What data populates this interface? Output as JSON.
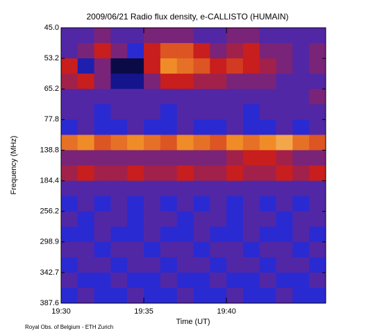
{
  "chart_data": {
    "type": "heatmap",
    "title": "2009/06/21  Radio flux density, e-CALLISTO (HUMAIN)",
    "x_label": "Time (UT)",
    "y_label": "Frequency (MHz)",
    "credit": "Royal Obs. of Belgium - ETH Zurich",
    "xlim": [
      "19:30",
      "19:46"
    ],
    "xticks": [
      "19:30",
      "19:35",
      "19:40"
    ],
    "yticks": [
      {
        "value": 45,
        "label": "45.0"
      },
      {
        "value": 53.2,
        "label": "53.2"
      },
      {
        "value": 65.2,
        "label": "65.2"
      },
      {
        "value": 77.8,
        "label": "77.8"
      },
      {
        "value": 138.8,
        "label": "138.8"
      },
      {
        "value": 184.4,
        "label": "184.4"
      },
      {
        "value": 256.2,
        "label": "256.2"
      },
      {
        "value": 298.9,
        "label": "298.9"
      },
      {
        "value": 342.7,
        "label": "342.7"
      },
      {
        "value": 387.6,
        "label": "387.6"
      }
    ],
    "colormap": [
      "#000000",
      "#14148c",
      "#2a2ad2",
      "#c81e1e",
      "#f08c28",
      "#fff5b4"
    ],
    "values": [
      [
        0.45,
        0.45,
        0.5,
        0.45,
        0.45,
        0.5,
        0.5,
        0.5,
        0.45,
        0.45,
        0.5,
        0.5,
        0.45,
        0.45,
        0.45,
        0.45
      ],
      [
        0.45,
        0.5,
        0.6,
        0.5,
        0.4,
        0.6,
        0.7,
        0.7,
        0.6,
        0.5,
        0.55,
        0.6,
        0.5,
        0.5,
        0.45,
        0.5
      ],
      [
        0.6,
        0.3,
        0.5,
        0.1,
        0.1,
        0.6,
        0.8,
        0.75,
        0.7,
        0.6,
        0.65,
        0.6,
        0.55,
        0.5,
        0.45,
        0.5
      ],
      [
        0.55,
        0.6,
        0.5,
        0.2,
        0.2,
        0.5,
        0.6,
        0.6,
        0.55,
        0.55,
        0.5,
        0.5,
        0.5,
        0.45,
        0.45,
        0.45
      ],
      [
        0.45,
        0.45,
        0.45,
        0.45,
        0.45,
        0.45,
        0.45,
        0.45,
        0.45,
        0.45,
        0.45,
        0.45,
        0.45,
        0.45,
        0.45,
        0.5
      ],
      [
        0.45,
        0.45,
        0.4,
        0.45,
        0.45,
        0.45,
        0.4,
        0.45,
        0.45,
        0.45,
        0.45,
        0.4,
        0.45,
        0.45,
        0.45,
        0.45
      ],
      [
        0.4,
        0.45,
        0.4,
        0.4,
        0.45,
        0.4,
        0.4,
        0.45,
        0.4,
        0.4,
        0.45,
        0.4,
        0.4,
        0.45,
        0.4,
        0.45
      ],
      [
        0.75,
        0.8,
        0.7,
        0.75,
        0.8,
        0.75,
        0.7,
        0.8,
        0.75,
        0.7,
        0.8,
        0.75,
        0.8,
        0.85,
        0.75,
        0.7
      ],
      [
        0.5,
        0.5,
        0.5,
        0.5,
        0.5,
        0.5,
        0.5,
        0.5,
        0.5,
        0.5,
        0.55,
        0.6,
        0.6,
        0.55,
        0.5,
        0.5
      ],
      [
        0.55,
        0.6,
        0.55,
        0.55,
        0.6,
        0.55,
        0.55,
        0.6,
        0.55,
        0.55,
        0.6,
        0.55,
        0.55,
        0.6,
        0.55,
        0.6
      ],
      [
        0.45,
        0.45,
        0.45,
        0.45,
        0.45,
        0.45,
        0.45,
        0.45,
        0.45,
        0.45,
        0.45,
        0.45,
        0.45,
        0.45,
        0.45,
        0.45
      ],
      [
        0.4,
        0.45,
        0.4,
        0.45,
        0.4,
        0.45,
        0.4,
        0.45,
        0.4,
        0.45,
        0.4,
        0.45,
        0.4,
        0.45,
        0.4,
        0.45
      ],
      [
        0.45,
        0.4,
        0.45,
        0.45,
        0.4,
        0.45,
        0.45,
        0.4,
        0.45,
        0.45,
        0.4,
        0.45,
        0.45,
        0.4,
        0.45,
        0.45
      ],
      [
        0.4,
        0.4,
        0.45,
        0.4,
        0.4,
        0.45,
        0.4,
        0.4,
        0.45,
        0.4,
        0.4,
        0.45,
        0.4,
        0.4,
        0.45,
        0.4
      ],
      [
        0.45,
        0.45,
        0.4,
        0.45,
        0.45,
        0.4,
        0.45,
        0.45,
        0.4,
        0.45,
        0.45,
        0.4,
        0.45,
        0.45,
        0.4,
        0.45
      ],
      [
        0.4,
        0.45,
        0.45,
        0.4,
        0.45,
        0.45,
        0.4,
        0.45,
        0.45,
        0.4,
        0.45,
        0.45,
        0.4,
        0.45,
        0.45,
        0.4
      ],
      [
        0.45,
        0.4,
        0.4,
        0.45,
        0.4,
        0.4,
        0.45,
        0.4,
        0.4,
        0.45,
        0.4,
        0.4,
        0.45,
        0.4,
        0.4,
        0.45
      ],
      [
        0.4,
        0.45,
        0.4,
        0.4,
        0.45,
        0.4,
        0.4,
        0.45,
        0.4,
        0.4,
        0.45,
        0.4,
        0.4,
        0.45,
        0.4,
        0.4
      ]
    ]
  }
}
